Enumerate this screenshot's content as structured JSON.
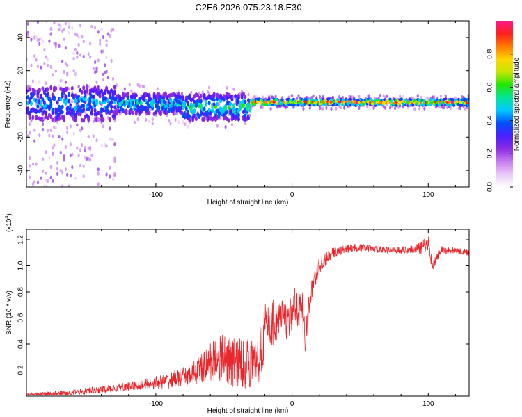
{
  "figure": {
    "title": "C2E6.2026.075.23.18.E30"
  },
  "colors": {
    "snr_line": "#e8262b",
    "axis": "#000000",
    "spectrogram_scale": [
      "#ffffff",
      "#e8c8f5",
      "#c77cf0",
      "#8a2be2",
      "#4b1fff",
      "#0050ff",
      "#00c8ff",
      "#00e69a",
      "#22e600",
      "#c8e600",
      "#ffd500",
      "#ff7a00",
      "#ff1e1e",
      "#ff1a8c"
    ]
  },
  "chart_data": [
    {
      "type": "heatmap",
      "name": "spectrogram",
      "xlabel": "Height of straight line (km)",
      "ylabel": "Frequency (Hz)",
      "xlim": [
        -195,
        130
      ],
      "ylim": [
        -50,
        50
      ],
      "xticks": [
        -100,
        0,
        100
      ],
      "yticks": [
        -40,
        -20,
        0,
        20,
        40
      ],
      "colorbar": {
        "label": "Normalized spectral amplitude",
        "range": [
          0,
          1
        ],
        "ticks": [
          0.0,
          0.2,
          0.4,
          0.6,
          0.8
        ],
        "tick_labels": [
          "0.0",
          "0.2",
          "0.4",
          "0.6",
          "0.8"
        ]
      },
      "bands": [
        {
          "x": [
            -195,
            -130
          ],
          "freq_center": 0,
          "spread": 10,
          "peak_amp": 0.45,
          "scatter_spread": 50,
          "scatter_amp": 0.15
        },
        {
          "x": [
            -130,
            -80
          ],
          "freq_center": 0,
          "spread": 6,
          "peak_amp": 0.5,
          "scatter_spread": 12,
          "scatter_amp": 0.12
        },
        {
          "x": [
            -80,
            -30
          ],
          "freq_center": -2,
          "spread": 8,
          "peak_amp": 0.55,
          "scatter_spread": 12,
          "scatter_amp": 0.12
        },
        {
          "x": [
            -30,
            130
          ],
          "freq_center": 1,
          "spread": 2,
          "peak_amp": 0.95,
          "scatter_spread": 4,
          "scatter_amp": 0.2
        }
      ]
    },
    {
      "type": "line",
      "name": "snr",
      "xlabel": "Height of straight line (km)",
      "ylabel": "SNR (10 * v/v)",
      "multiplier_label": "(x10",
      "multiplier_exp": "4",
      "multiplier_close": ")",
      "xlim": [
        -195,
        130
      ],
      "ylim": [
        0,
        1.28
      ],
      "xticks": [
        -100,
        0,
        100
      ],
      "yticks": [
        0.2,
        0.4,
        0.6,
        0.8,
        1.0,
        1.2
      ],
      "ytick_labels": [
        "0.2",
        "0.4",
        "0.6",
        "0.8",
        "1.0",
        "1.2"
      ],
      "series": [
        {
          "name": "SNR",
          "x": [
            -195,
            -170,
            -150,
            -130,
            -110,
            -90,
            -75,
            -65,
            -55,
            -45,
            -35,
            -25,
            -20,
            -15,
            -10,
            -5,
            0,
            5,
            8,
            10,
            12,
            15,
            20,
            30,
            40,
            50,
            60,
            70,
            80,
            90,
            95,
            100,
            103,
            110,
            120,
            130
          ],
          "mean": [
            0.01,
            0.02,
            0.04,
            0.06,
            0.09,
            0.12,
            0.16,
            0.22,
            0.3,
            0.26,
            0.25,
            0.26,
            0.5,
            0.56,
            0.6,
            0.58,
            0.62,
            0.72,
            0.6,
            0.45,
            0.65,
            0.85,
            1.0,
            1.1,
            1.13,
            1.14,
            1.13,
            1.12,
            1.12,
            1.13,
            1.14,
            1.18,
            1.0,
            1.12,
            1.12,
            1.1
          ],
          "amp": [
            0.015,
            0.02,
            0.025,
            0.03,
            0.04,
            0.06,
            0.08,
            0.12,
            0.18,
            0.2,
            0.2,
            0.18,
            0.22,
            0.2,
            0.18,
            0.15,
            0.15,
            0.2,
            0.2,
            0.12,
            0.1,
            0.08,
            0.06,
            0.04,
            0.03,
            0.03,
            0.025,
            0.025,
            0.025,
            0.03,
            0.05,
            0.06,
            0.04,
            0.03,
            0.025,
            0.025
          ]
        }
      ]
    }
  ]
}
